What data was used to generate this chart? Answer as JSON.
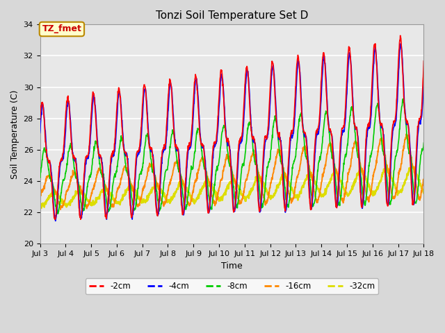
{
  "title": "Tonzi Soil Temperature Set D",
  "xlabel": "Time",
  "ylabel": "Soil Temperature (C)",
  "annotation": "TZ_fmet",
  "annotation_color": "#cc0000",
  "annotation_bg": "#ffffcc",
  "annotation_border": "#bb8800",
  "ylim": [
    20,
    34
  ],
  "yticks": [
    20,
    22,
    24,
    26,
    28,
    30,
    32,
    34
  ],
  "xtick_labels": [
    "Jul 3",
    "Jul 4",
    "Jul 5",
    "Jul 6",
    "Jul 7",
    "Jul 8",
    "Jul 9",
    "Jul 10",
    "Jul 11",
    "Jul 12",
    "Jul 13",
    "Jul 14",
    "Jul 15",
    "Jul 16",
    "Jul 17",
    "Jul 18"
  ],
  "colors": {
    "-2cm": "#ff0000",
    "-4cm": "#0000ff",
    "-8cm": "#00cc00",
    "-16cm": "#ff8800",
    "-32cm": "#dddd00"
  },
  "fig_bg": "#d8d8d8",
  "plot_bg": "#e8e8e8",
  "grid_color": "#ffffff"
}
